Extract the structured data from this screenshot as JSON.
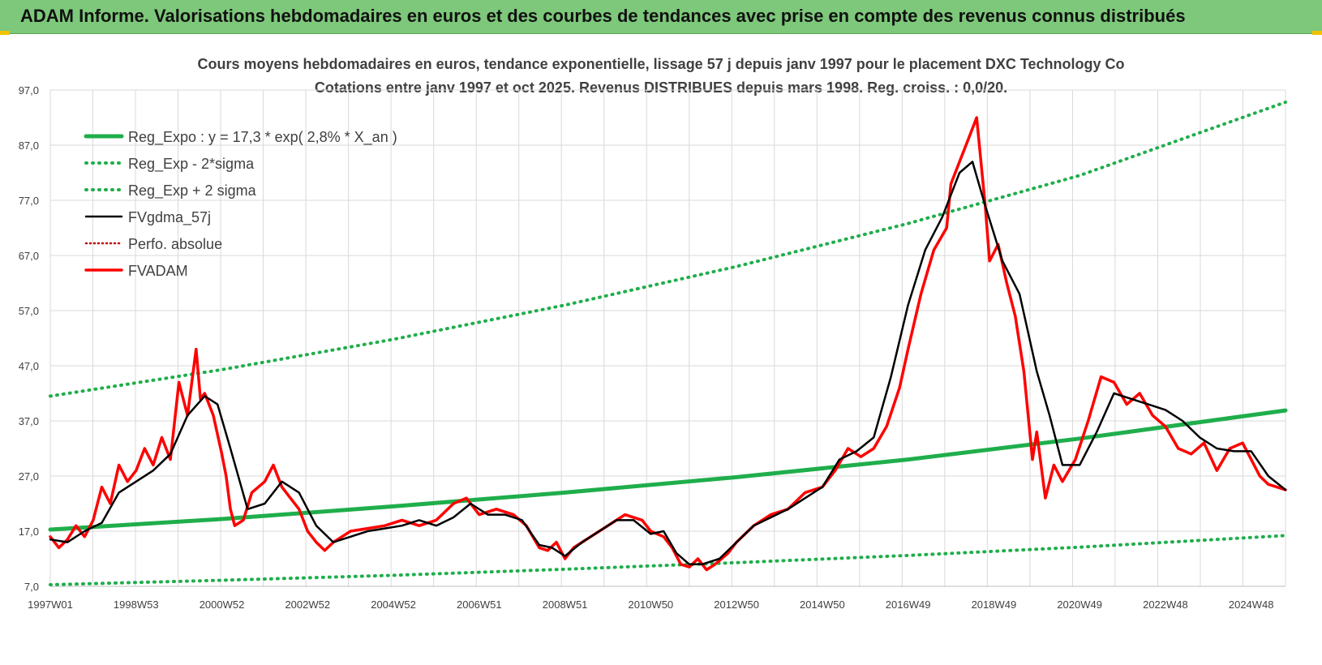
{
  "banner": {
    "title": "ADAM Informe. Valorisations hebdomadaires en euros et des courbes de tendances avec prise en compte des revenus connus distribués"
  },
  "colors": {
    "banner_bg": "#7dc87a",
    "reg_green": "#1fae4b",
    "adam_red": "#ff0000",
    "black": "#000000",
    "perfo": "#c00000",
    "grid": "#d9d9d9",
    "title_text": "#404040",
    "corner": "#f2c200"
  },
  "chart_data": {
    "type": "line",
    "title": "Cours moyens hebdomadaires en euros, tendance exponentielle, lissage 57 j depuis janv 1997 pour le placement DXC Technology Co",
    "subtitle": "Cotations entre janv 1997 et oct 2025. Revenus DISTRIBUES depuis mars 1998.  Reg. croiss. : 0,0/20.",
    "xlabel": "",
    "ylabel": "",
    "ylim": [
      7,
      97
    ],
    "xlim": [
      1997.0,
      2025.8
    ],
    "yticks": [
      "7,0",
      "17,0",
      "27,0",
      "37,0",
      "47,0",
      "57,0",
      "67,0",
      "77,0",
      "87,0",
      "97,0"
    ],
    "ytick_values": [
      7,
      17,
      27,
      37,
      47,
      57,
      67,
      77,
      87,
      97
    ],
    "xticks": [
      "1997W01",
      "1998W53",
      "2000W52",
      "2002W52",
      "2004W52",
      "2006W51",
      "2008W51",
      "2010W50",
      "2012W50",
      "2014W50",
      "2016W49",
      "2018W49",
      "2020W49",
      "2022W48",
      "2024W48"
    ],
    "xtick_values": [
      1997.0,
      1999.0,
      2001.0,
      2003.0,
      2005.0,
      2007.0,
      2009.0,
      2011.0,
      2013.0,
      2015.0,
      2017.0,
      2019.0,
      2021.0,
      2023.0,
      2025.0
    ],
    "grid": true,
    "legend_position": "top-left",
    "series": [
      {
        "name": "Reg_Expo : y = 17,3 * exp( 2,8% *  X_an )",
        "style": "solid-green",
        "x": [
          1997.0,
          2001.0,
          2005.0,
          2009.0,
          2013.0,
          2017.0,
          2021.0,
          2025.8
        ],
        "y": [
          17.3,
          19.2,
          21.5,
          24.0,
          26.8,
          30.0,
          33.8,
          38.9
        ]
      },
      {
        "name": "Reg_Exp - 2*sigma",
        "style": "dotted-green",
        "x": [
          1997.0,
          2001.0,
          2005.0,
          2009.0,
          2013.0,
          2017.0,
          2021.0,
          2025.8
        ],
        "y": [
          7.3,
          8.1,
          9.0,
          10.1,
          11.3,
          12.6,
          14.1,
          16.2
        ]
      },
      {
        "name": "Reg_Exp + 2 sigma",
        "style": "dotted-green",
        "x": [
          1997.0,
          2001.0,
          2005.0,
          2009.0,
          2013.0,
          2017.0,
          2021.0,
          2025.8
        ],
        "y": [
          41.5,
          46.3,
          51.8,
          58.0,
          65.0,
          72.8,
          81.5,
          94.8
        ]
      },
      {
        "name": "FVgdma_57j",
        "style": "solid-black",
        "x": [
          1997.0,
          1997.4,
          1997.8,
          1998.2,
          1998.6,
          1999.0,
          1999.4,
          1999.8,
          2000.2,
          2000.6,
          2000.9,
          2001.2,
          2001.6,
          2002.0,
          2002.4,
          2002.8,
          2003.2,
          2003.6,
          2004.0,
          2004.4,
          2004.8,
          2005.2,
          2005.6,
          2006.0,
          2006.4,
          2006.8,
          2007.2,
          2007.6,
          2008.0,
          2008.4,
          2008.7,
          2009.0,
          2009.4,
          2009.8,
          2010.2,
          2010.6,
          2011.0,
          2011.3,
          2011.6,
          2011.9,
          2012.2,
          2012.6,
          2013.0,
          2013.4,
          2013.8,
          2014.2,
          2014.6,
          2015.0,
          2015.4,
          2015.8,
          2016.2,
          2016.6,
          2017.0,
          2017.4,
          2017.8,
          2018.2,
          2018.5,
          2018.8,
          2019.2,
          2019.6,
          2020.0,
          2020.3,
          2020.6,
          2021.0,
          2021.4,
          2021.8,
          2022.2,
          2022.6,
          2023.0,
          2023.4,
          2023.8,
          2024.2,
          2024.6,
          2025.0,
          2025.4,
          2025.8
        ],
        "y": [
          15.5,
          15.0,
          17.0,
          18.5,
          24.0,
          26.0,
          28.0,
          31.0,
          38.0,
          41.5,
          40.0,
          32.0,
          21.0,
          22.0,
          26.0,
          24.0,
          18.0,
          15.0,
          16.0,
          17.0,
          17.5,
          18.0,
          19.0,
          18.0,
          19.5,
          22.0,
          20.0,
          20.0,
          19.0,
          14.5,
          14.0,
          12.5,
          15.0,
          17.0,
          19.0,
          19.0,
          16.5,
          17.0,
          13.0,
          11.0,
          11.0,
          12.0,
          15.0,
          18.0,
          19.5,
          21.0,
          23.0,
          25.0,
          30.0,
          31.5,
          34.0,
          45.0,
          58.0,
          68.0,
          74.0,
          82.0,
          84.0,
          76.0,
          66.0,
          60.0,
          46.0,
          38.0,
          29.0,
          29.0,
          35.0,
          42.0,
          41.0,
          40.0,
          39.0,
          37.0,
          34.0,
          32.0,
          31.5,
          31.5,
          27.0,
          24.5
        ]
      },
      {
        "name": "Perfo. absolue",
        "style": "dotted-darkred",
        "x": [],
        "y": []
      },
      {
        "name": "FVADAM",
        "style": "solid-red",
        "x": [
          1997.0,
          1997.2,
          1997.4,
          1997.6,
          1997.8,
          1998.0,
          1998.2,
          1998.4,
          1998.6,
          1998.8,
          1999.0,
          1999.2,
          1999.4,
          1999.6,
          1999.8,
          2000.0,
          2000.2,
          2000.4,
          2000.5,
          2000.6,
          2000.8,
          2001.0,
          2001.1,
          2001.2,
          2001.3,
          2001.5,
          2001.7,
          2002.0,
          2002.2,
          2002.4,
          2002.6,
          2002.8,
          2003.0,
          2003.2,
          2003.4,
          2003.6,
          2003.8,
          2004.0,
          2004.4,
          2004.8,
          2005.2,
          2005.6,
          2006.0,
          2006.4,
          2006.7,
          2007.0,
          2007.4,
          2007.8,
          2008.1,
          2008.4,
          2008.6,
          2008.8,
          2009.0,
          2009.2,
          2009.6,
          2010.0,
          2010.4,
          2010.8,
          2011.0,
          2011.3,
          2011.5,
          2011.7,
          2011.9,
          2012.1,
          2012.3,
          2012.5,
          2012.8,
          2013.0,
          2013.4,
          2013.8,
          2014.2,
          2014.6,
          2015.0,
          2015.3,
          2015.6,
          2015.9,
          2016.2,
          2016.5,
          2016.8,
          2017.0,
          2017.3,
          2017.6,
          2017.9,
          2018.0,
          2018.2,
          2018.4,
          2018.6,
          2018.8,
          2018.9,
          2019.1,
          2019.3,
          2019.5,
          2019.7,
          2019.9,
          2020.0,
          2020.2,
          2020.4,
          2020.6,
          2020.9,
          2021.2,
          2021.5,
          2021.8,
          2022.1,
          2022.4,
          2022.7,
          2023.0,
          2023.3,
          2023.6,
          2023.9,
          2024.2,
          2024.5,
          2024.8,
          2025.0,
          2025.2,
          2025.4,
          2025.6,
          2025.8
        ],
        "y": [
          16.0,
          14.0,
          15.5,
          18.0,
          16.0,
          19.0,
          25.0,
          22.0,
          29.0,
          26.0,
          28.0,
          32.0,
          29.0,
          34.0,
          30.0,
          44.0,
          38.0,
          50.0,
          41.0,
          42.0,
          38.0,
          31.0,
          27.0,
          21.0,
          18.0,
          19.0,
          24.0,
          26.0,
          29.0,
          25.0,
          23.0,
          21.0,
          17.0,
          15.0,
          13.5,
          15.0,
          16.0,
          17.0,
          17.5,
          18.0,
          19.0,
          18.0,
          19.0,
          22.0,
          23.0,
          20.0,
          21.0,
          20.0,
          18.0,
          14.0,
          13.5,
          15.0,
          12.0,
          14.0,
          16.0,
          18.0,
          20.0,
          19.0,
          17.0,
          16.0,
          14.0,
          11.0,
          10.5,
          12.0,
          10.0,
          11.0,
          13.0,
          15.0,
          18.0,
          20.0,
          21.0,
          24.0,
          25.0,
          28.0,
          32.0,
          30.5,
          32.0,
          36.0,
          43.0,
          50.0,
          60.0,
          68.0,
          72.0,
          80.0,
          84.0,
          88.0,
          92.0,
          76.0,
          66.0,
          69.0,
          62.0,
          56.0,
          46.0,
          30.0,
          35.0,
          23.0,
          29.0,
          26.0,
          30.0,
          37.0,
          45.0,
          44.0,
          40.0,
          42.0,
          38.0,
          36.0,
          32.0,
          31.0,
          33.0,
          28.0,
          32.0,
          33.0,
          30.0,
          27.0,
          25.5,
          25.0,
          24.5
        ]
      }
    ]
  }
}
